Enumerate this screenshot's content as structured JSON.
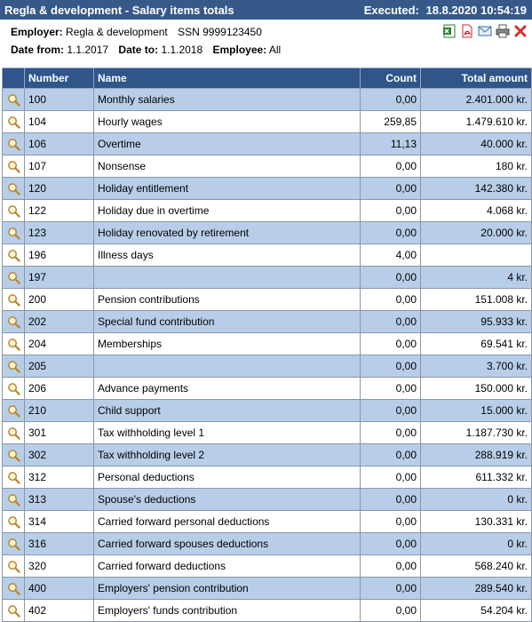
{
  "header": {
    "title": "Regla & development - Salary items totals",
    "executed_label": "Executed:",
    "executed_value": "18.8.2020 10:54:19"
  },
  "info": {
    "employer_label": "Employer:",
    "employer_value": "Regla & development",
    "ssn_value": "SSN 9999123450",
    "date_from_label": "Date from:",
    "date_from_value": "1.1.2017",
    "date_to_label": "Date to:",
    "date_to_value": "1.1.2018",
    "employee_label": "Employee:",
    "employee_value": "All"
  },
  "toolbar_icons": [
    "excel-icon",
    "pdf-icon",
    "email-icon",
    "print-icon",
    "close-icon"
  ],
  "table": {
    "columns": [
      "Number",
      "Name",
      "Count",
      "Total amount"
    ],
    "rows": [
      {
        "number": "100",
        "name": "Monthly salaries",
        "count": "0,00",
        "total": "2.401.000 kr."
      },
      {
        "number": "104",
        "name": "Hourly wages",
        "count": "259,85",
        "total": "1.479.610 kr."
      },
      {
        "number": "106",
        "name": "Overtime",
        "count": "11,13",
        "total": "40.000 kr."
      },
      {
        "number": "107",
        "name": "Nonsense",
        "count": "0,00",
        "total": "180 kr."
      },
      {
        "number": "120",
        "name": "Holiday entitlement",
        "count": "0,00",
        "total": "142.380 kr."
      },
      {
        "number": "122",
        "name": "Holiday due in overtime",
        "count": "0,00",
        "total": "4.068 kr."
      },
      {
        "number": "123",
        "name": "Holiday renovated by retirement",
        "count": "0,00",
        "total": "20.000 kr."
      },
      {
        "number": "196",
        "name": "Illness days",
        "count": "4,00",
        "total": ""
      },
      {
        "number": "197",
        "name": "",
        "count": "0,00",
        "total": "4 kr."
      },
      {
        "number": "200",
        "name": "Pension contributions",
        "count": "0,00",
        "total": "151.008 kr."
      },
      {
        "number": "202",
        "name": "Special fund contribution",
        "count": "0,00",
        "total": "95.933 kr."
      },
      {
        "number": "204",
        "name": "Memberships",
        "count": "0,00",
        "total": "69.541 kr."
      },
      {
        "number": "205",
        "name": "",
        "count": "0,00",
        "total": "3.700 kr."
      },
      {
        "number": "206",
        "name": "Advance payments",
        "count": "0,00",
        "total": "150.000 kr."
      },
      {
        "number": "210",
        "name": "Child support",
        "count": "0,00",
        "total": "15.000 kr."
      },
      {
        "number": "301",
        "name": "Tax withholding level 1",
        "count": "0,00",
        "total": "1.187.730 kr."
      },
      {
        "number": "302",
        "name": "Tax withholding level 2",
        "count": "0,00",
        "total": "288.919 kr."
      },
      {
        "number": "312",
        "name": "Personal deductions",
        "count": "0,00",
        "total": "611.332 kr."
      },
      {
        "number": "313",
        "name": "Spouse's deductions",
        "count": "0,00",
        "total": "0 kr."
      },
      {
        "number": "314",
        "name": "Carried forward personal deductions",
        "count": "0,00",
        "total": "130.331 kr."
      },
      {
        "number": "316",
        "name": "Carried forward spouses deductions",
        "count": "0,00",
        "total": "0 kr."
      },
      {
        "number": "320",
        "name": "Carried forward deductions",
        "count": "0,00",
        "total": "568.240 kr."
      },
      {
        "number": "400",
        "name": "Employers' pension contribution",
        "count": "0,00",
        "total": "289.540 kr."
      },
      {
        "number": "402",
        "name": "Employers' funds contribution",
        "count": "0,00",
        "total": "54.204 kr."
      }
    ]
  }
}
